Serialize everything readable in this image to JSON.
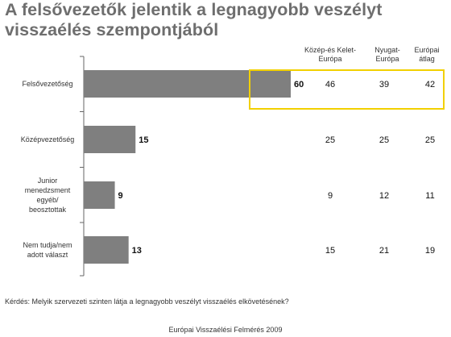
{
  "title_line1": "A felsővezetők jelentik a legnagyobb veszélyt",
  "title_line2": "visszaélés szempontjából",
  "columns": [
    {
      "line1": "Közép-és Kelet-",
      "line2": "Európa"
    },
    {
      "line1": "Nyugat-",
      "line2": "Európa"
    },
    {
      "line1": "Európai",
      "line2": "átlag"
    }
  ],
  "question": "Kérdés: Melyik szervezeti szinten látja a legnagyobb veszélyt visszaélés elkövetésének?",
  "source": "Európai Visszaélési Felmérés 2009",
  "colors": {
    "bar": "#7f7f7f",
    "highlight": "#f2d000"
  },
  "chart_data": {
    "type": "bar",
    "orientation": "horizontal",
    "categories": [
      [
        "Felsővezetőség"
      ],
      [
        "Középvezetőség"
      ],
      [
        "Junior",
        "menedzsment",
        "egyéb/",
        "beosztottak"
      ],
      [
        "Nem tudja/nem",
        "adott választ"
      ]
    ],
    "values": [
      60,
      15,
      9,
      13
    ],
    "table_columns": [
      "Közép-és Kelet-Európa",
      "Nyugat-Európa",
      "Európai átlag"
    ],
    "table_values": [
      [
        46,
        39,
        42
      ],
      [
        25,
        25,
        25
      ],
      [
        9,
        12,
        11
      ],
      [
        15,
        21,
        19
      ]
    ],
    "xlim": [
      0,
      60
    ],
    "grid": false,
    "legend": "none"
  }
}
